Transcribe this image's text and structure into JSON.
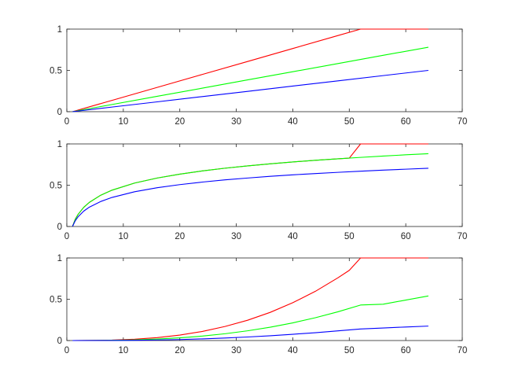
{
  "chart_data": [
    {
      "type": "line",
      "xlim": [
        0,
        70
      ],
      "ylim": [
        0,
        1
      ],
      "xticks": [
        "0",
        "10",
        "20",
        "30",
        "40",
        "50",
        "60",
        "70"
      ],
      "yticks": [
        "0",
        "0.5",
        "1"
      ],
      "grid": false,
      "series": [
        {
          "color": "#ff0000",
          "points": [
            [
              1,
              0
            ],
            [
              8,
              0.137
            ],
            [
              16,
              0.294
            ],
            [
              24,
              0.451
            ],
            [
              32,
              0.608
            ],
            [
              40,
              0.765
            ],
            [
              48,
              0.922
            ],
            [
              52,
              1.0
            ],
            [
              64,
              1.0
            ]
          ]
        },
        {
          "color": "#00ff00",
          "points": [
            [
              1,
              0
            ],
            [
              8,
              0.087
            ],
            [
              16,
              0.186
            ],
            [
              24,
              0.285
            ],
            [
              32,
              0.385
            ],
            [
              40,
              0.484
            ],
            [
              48,
              0.583
            ],
            [
              56,
              0.683
            ],
            [
              64,
              0.78
            ]
          ]
        },
        {
          "color": "#0000ff",
          "points": [
            [
              1,
              0
            ],
            [
              8,
              0.056
            ],
            [
              16,
              0.119
            ],
            [
              24,
              0.183
            ],
            [
              32,
              0.246
            ],
            [
              40,
              0.31
            ],
            [
              48,
              0.373
            ],
            [
              56,
              0.437
            ],
            [
              64,
              0.5
            ]
          ]
        }
      ]
    },
    {
      "type": "line",
      "xlim": [
        0,
        70
      ],
      "ylim": [
        0,
        1
      ],
      "xticks": [
        "0",
        "10",
        "20",
        "30",
        "40",
        "50",
        "60",
        "70"
      ],
      "yticks": [
        "0",
        "0.5",
        "1"
      ],
      "grid": false,
      "series": [
        {
          "color": "#ff0000",
          "points": [
            [
              1,
              0
            ],
            [
              1.5,
              0.09
            ],
            [
              2,
              0.147
            ],
            [
              3,
              0.233
            ],
            [
              4,
              0.293
            ],
            [
              6,
              0.379
            ],
            [
              8,
              0.44
            ],
            [
              12,
              0.526
            ],
            [
              16,
              0.587
            ],
            [
              20,
              0.634
            ],
            [
              24,
              0.673
            ],
            [
              28,
              0.706
            ],
            [
              32,
              0.734
            ],
            [
              36,
              0.759
            ],
            [
              40,
              0.782
            ],
            [
              44,
              0.802
            ],
            [
              48,
              0.82
            ],
            [
              50,
              0.828
            ],
            [
              52,
              1.0
            ],
            [
              64,
              1.0
            ]
          ]
        },
        {
          "color": "#00ff00",
          "points": [
            [
              1,
              0
            ],
            [
              1.5,
              0.087
            ],
            [
              2,
              0.147
            ],
            [
              3,
              0.233
            ],
            [
              4,
              0.293
            ],
            [
              6,
              0.379
            ],
            [
              8,
              0.44
            ],
            [
              12,
              0.526
            ],
            [
              16,
              0.587
            ],
            [
              20,
              0.634
            ],
            [
              24,
              0.673
            ],
            [
              28,
              0.706
            ],
            [
              32,
              0.734
            ],
            [
              36,
              0.759
            ],
            [
              40,
              0.782
            ],
            [
              44,
              0.802
            ],
            [
              48,
              0.82
            ],
            [
              52,
              0.837
            ],
            [
              56,
              0.853
            ],
            [
              60,
              0.868
            ],
            [
              64,
              0.882
            ]
          ]
        },
        {
          "color": "#0000ff",
          "points": [
            [
              1,
              0
            ],
            [
              1.5,
              0.07
            ],
            [
              2,
              0.118
            ],
            [
              3,
              0.187
            ],
            [
              4,
              0.235
            ],
            [
              6,
              0.303
            ],
            [
              8,
              0.352
            ],
            [
              12,
              0.421
            ],
            [
              16,
              0.47
            ],
            [
              20,
              0.507
            ],
            [
              24,
              0.538
            ],
            [
              28,
              0.565
            ],
            [
              32,
              0.587
            ],
            [
              36,
              0.608
            ],
            [
              40,
              0.626
            ],
            [
              44,
              0.641
            ],
            [
              48,
              0.656
            ],
            [
              52,
              0.67
            ],
            [
              56,
              0.683
            ],
            [
              60,
              0.694
            ],
            [
              64,
              0.705
            ]
          ]
        }
      ]
    },
    {
      "type": "line",
      "xlim": [
        0,
        70
      ],
      "ylim": [
        0,
        1
      ],
      "xticks": [
        "0",
        "10",
        "20",
        "30",
        "40",
        "50",
        "60",
        "70"
      ],
      "yticks": [
        "0",
        "0.5",
        "1"
      ],
      "grid": false,
      "series": [
        {
          "color": "#ff0000",
          "points": [
            [
              1,
              0
            ],
            [
              8,
              0.005
            ],
            [
              12,
              0.016
            ],
            [
              16,
              0.035
            ],
            [
              20,
              0.066
            ],
            [
              24,
              0.11
            ],
            [
              28,
              0.17
            ],
            [
              32,
              0.246
            ],
            [
              36,
              0.341
            ],
            [
              40,
              0.458
            ],
            [
              44,
              0.596
            ],
            [
              48,
              0.76
            ],
            [
              50,
              0.85
            ],
            [
              52,
              1.0
            ],
            [
              64,
              1.0
            ]
          ]
        },
        {
          "color": "#00ff00",
          "points": [
            [
              1,
              0
            ],
            [
              8,
              0.003
            ],
            [
              12,
              0.008
            ],
            [
              16,
              0.018
            ],
            [
              20,
              0.033
            ],
            [
              24,
              0.054
            ],
            [
              28,
              0.082
            ],
            [
              32,
              0.118
            ],
            [
              36,
              0.161
            ],
            [
              40,
              0.214
            ],
            [
              44,
              0.276
            ],
            [
              48,
              0.348
            ],
            [
              52,
              0.43
            ],
            [
              56,
              0.44
            ],
            [
              60,
              0.49
            ],
            [
              64,
              0.54
            ]
          ]
        },
        {
          "color": "#0000ff",
          "points": [
            [
              1,
              0
            ],
            [
              8,
              0.001
            ],
            [
              12,
              0.003
            ],
            [
              16,
              0.007
            ],
            [
              20,
              0.012
            ],
            [
              24,
              0.02
            ],
            [
              28,
              0.03
            ],
            [
              32,
              0.043
            ],
            [
              36,
              0.058
            ],
            [
              40,
              0.076
            ],
            [
              44,
              0.095
            ],
            [
              48,
              0.117
            ],
            [
              52,
              0.14
            ],
            [
              56,
              0.152
            ],
            [
              60,
              0.164
            ],
            [
              64,
              0.175
            ]
          ]
        }
      ]
    }
  ]
}
